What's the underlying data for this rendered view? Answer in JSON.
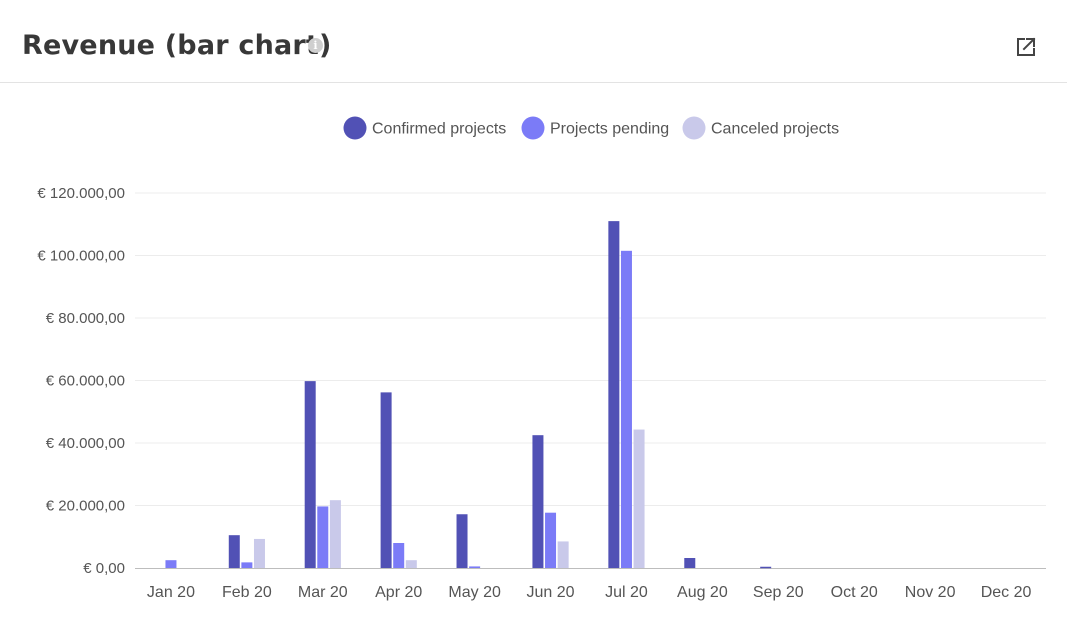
{
  "header": {
    "title": "Revenue (bar chart)",
    "info_icon": "info-icon",
    "open_icon": "external-link-icon"
  },
  "colors": {
    "confirmed": "#5151b5",
    "pending": "#7b7bf7",
    "canceled": "#c9c9ea",
    "grid": "#ececec",
    "axis": "#bdbdbd",
    "text": "#555555"
  },
  "chart_data": {
    "type": "bar",
    "title": "",
    "xlabel": "",
    "ylabel": "",
    "categories": [
      "Jan 20",
      "Feb 20",
      "Mar 20",
      "Apr 20",
      "May 20",
      "Jun 20",
      "Jul 20",
      "Aug 20",
      "Sep 20",
      "Oct 20",
      "Nov 20",
      "Dec 20"
    ],
    "series": [
      {
        "name": "Confirmed projects",
        "color": "#5151b5",
        "values": [
          0,
          10500,
          59800,
          56200,
          17200,
          42500,
          111000,
          3200,
          400,
          0,
          0,
          0
        ]
      },
      {
        "name": "Projects pending",
        "color": "#7b7bf7",
        "values": [
          2500,
          1800,
          19700,
          8000,
          500,
          17700,
          101500,
          0,
          0,
          0,
          0,
          0
        ]
      },
      {
        "name": "Canceled projects",
        "color": "#c9c9ea",
        "values": [
          0,
          9300,
          21700,
          2500,
          0,
          8500,
          44300,
          0,
          0,
          0,
          0,
          0
        ]
      }
    ],
    "ylim": [
      0,
      120000
    ],
    "yticks": [
      0,
      20000,
      40000,
      60000,
      80000,
      100000,
      120000
    ],
    "ytick_labels": [
      "€ 0,00",
      "€ 20.000,00",
      "€ 40.000,00",
      "€ 60.000,00",
      "€ 80.000,00",
      "€ 100.000,00",
      "€ 120.000,00"
    ],
    "grid": true,
    "legend_position": "top-center"
  }
}
